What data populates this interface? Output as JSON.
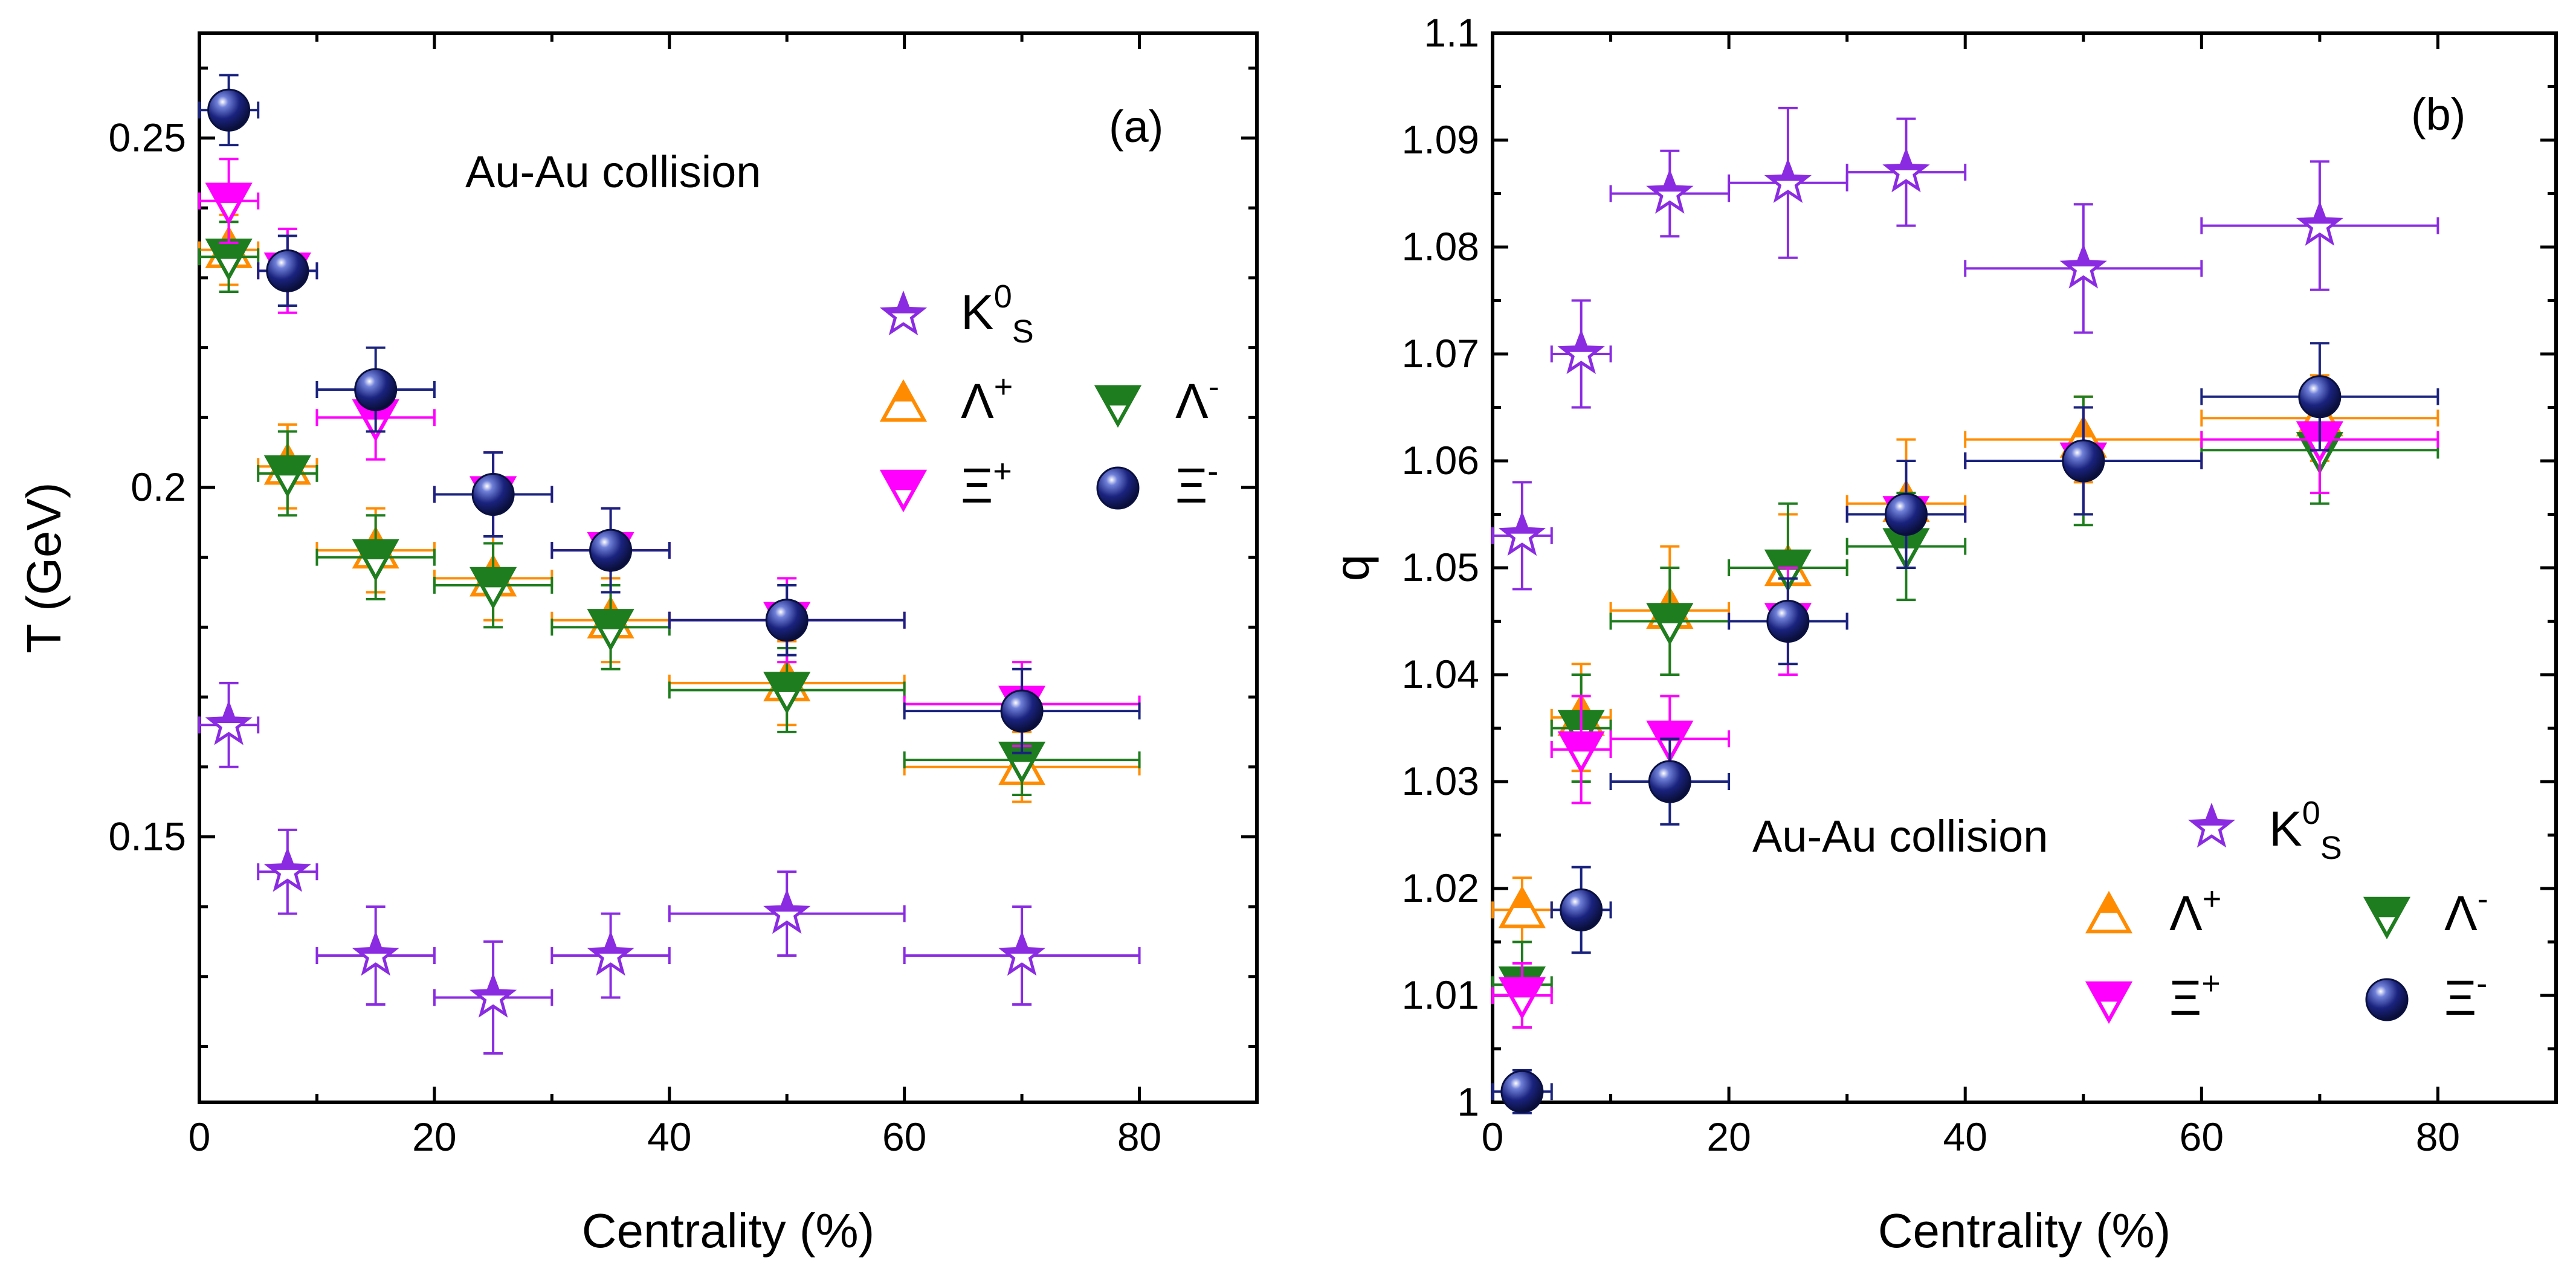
{
  "colors": {
    "K0S": "#8a2be2",
    "LambdaPlus": "#ff8c00",
    "LambdaMinus": "#1e7d1e",
    "XiPlus": "#ff00ff",
    "XiMinus": "#1a237e"
  },
  "chart_data": [
    {
      "type": "scatter",
      "panel_label": "(a)",
      "annotation": "Au-Au collision",
      "xlabel": "Centrality (%)",
      "ylabel": "T (GeV)",
      "xlim": [
        0,
        90
      ],
      "ylim": [
        0.112,
        0.265
      ],
      "x_ticks": [
        "0",
        "20",
        "40",
        "60",
        "80"
      ],
      "y_ticks": [
        "0.15",
        "0.2",
        "0.25"
      ],
      "series": [
        {
          "key": "K0S",
          "name": "K0S",
          "marker": "star",
          "x": [
            2.5,
            7.5,
            15,
            25,
            35,
            50,
            70
          ],
          "xerr": [
            2.5,
            2.5,
            5,
            5,
            5,
            10,
            10
          ],
          "y": [
            0.166,
            0.145,
            0.133,
            0.127,
            0.133,
            0.139,
            0.133
          ],
          "yerr": [
            0.006,
            0.006,
            0.007,
            0.008,
            0.006,
            0.006,
            0.007
          ]
        },
        {
          "key": "LambdaPlus",
          "name": "Λ+",
          "marker": "triangle-up",
          "x": [
            2.5,
            7.5,
            15,
            25,
            35,
            50,
            70
          ],
          "xerr": [
            2.5,
            2.5,
            5,
            5,
            5,
            10,
            10
          ],
          "y": [
            0.234,
            0.203,
            0.191,
            0.187,
            0.181,
            0.172,
            0.16
          ],
          "yerr": [
            0.005,
            0.006,
            0.006,
            0.006,
            0.006,
            0.006,
            0.005
          ]
        },
        {
          "key": "LambdaMinus",
          "name": "Λ-",
          "marker": "triangle-down",
          "x": [
            2.5,
            7.5,
            15,
            25,
            35,
            50,
            70
          ],
          "xerr": [
            2.5,
            2.5,
            5,
            5,
            5,
            10,
            10
          ],
          "y": [
            0.233,
            0.202,
            0.19,
            0.186,
            0.18,
            0.171,
            0.161
          ],
          "yerr": [
            0.005,
            0.006,
            0.006,
            0.006,
            0.006,
            0.006,
            0.005
          ]
        },
        {
          "key": "XiPlus",
          "name": "Ξ+",
          "marker": "triangle-down",
          "x": [
            2.5,
            7.5,
            15,
            25,
            35,
            50,
            70
          ],
          "xerr": [
            2.5,
            2.5,
            5,
            5,
            5,
            10,
            10
          ],
          "y": [
            0.241,
            0.231,
            0.21,
            0.199,
            0.191,
            0.181,
            0.169
          ],
          "yerr": [
            0.006,
            0.006,
            0.006,
            0.006,
            0.006,
            0.006,
            0.006
          ]
        },
        {
          "key": "XiMinus",
          "name": "Ξ-",
          "marker": "circle",
          "x": [
            2.5,
            7.5,
            15,
            25,
            35,
            50,
            70
          ],
          "xerr": [
            2.5,
            2.5,
            5,
            5,
            5,
            10,
            10
          ],
          "y": [
            0.254,
            0.231,
            0.214,
            0.199,
            0.191,
            0.181,
            0.168
          ],
          "yerr": [
            0.005,
            0.005,
            0.006,
            0.006,
            0.006,
            0.005,
            0.006
          ]
        }
      ],
      "legend": {
        "placement": "right"
      }
    },
    {
      "type": "scatter",
      "panel_label": "(b)",
      "annotation": "Au-Au collision",
      "xlabel": "Centrality (%)",
      "ylabel": "q",
      "xlim": [
        0,
        90
      ],
      "ylim": [
        1.0,
        1.1
      ],
      "x_ticks": [
        "0",
        "20",
        "40",
        "60",
        "80"
      ],
      "y_ticks": [
        "1",
        "1.01",
        "1.02",
        "1.03",
        "1.04",
        "1.05",
        "1.06",
        "1.07",
        "1.08",
        "1.09",
        "1.1"
      ],
      "series": [
        {
          "key": "K0S",
          "name": "K0S",
          "marker": "star",
          "x": [
            2.5,
            7.5,
            15,
            25,
            35,
            50,
            70
          ],
          "xerr": [
            2.5,
            2.5,
            5,
            5,
            5,
            10,
            10
          ],
          "y": [
            1.053,
            1.07,
            1.085,
            1.086,
            1.087,
            1.078,
            1.082
          ],
          "yerr": [
            0.005,
            0.005,
            0.004,
            0.007,
            0.005,
            0.006,
            0.006
          ]
        },
        {
          "key": "LambdaPlus",
          "name": "Λ+",
          "marker": "triangle-up",
          "x": [
            2.5,
            7.5,
            15,
            25,
            35,
            50,
            70
          ],
          "xerr": [
            2.5,
            2.5,
            5,
            5,
            5,
            10,
            10
          ],
          "y": [
            1.018,
            1.036,
            1.046,
            1.05,
            1.056,
            1.062,
            1.064
          ],
          "yerr": [
            0.003,
            0.005,
            0.006,
            0.005,
            0.006,
            0.004,
            0.004
          ]
        },
        {
          "key": "LambdaMinus",
          "name": "Λ-",
          "marker": "triangle-down",
          "x": [
            2.5,
            7.5,
            15,
            25,
            35,
            50,
            70
          ],
          "xerr": [
            2.5,
            2.5,
            5,
            5,
            5,
            10,
            10
          ],
          "y": [
            1.011,
            1.035,
            1.045,
            1.05,
            1.052,
            1.06,
            1.061
          ],
          "yerr": [
            0.004,
            0.005,
            0.005,
            0.006,
            0.005,
            0.006,
            0.005
          ]
        },
        {
          "key": "XiPlus",
          "name": "Ξ+",
          "marker": "triangle-down",
          "x": [
            2.5,
            7.5,
            15,
            25,
            35,
            50,
            70
          ],
          "xerr": [
            2.5,
            2.5,
            5,
            5,
            5,
            10,
            10
          ],
          "y": [
            1.01,
            1.033,
            1.034,
            1.045,
            1.055,
            1.06,
            1.062
          ],
          "yerr": [
            0.003,
            0.005,
            0.004,
            0.005,
            0.005,
            0.005,
            0.005
          ]
        },
        {
          "key": "XiMinus",
          "name": "Ξ-",
          "marker": "circle",
          "x": [
            2.5,
            7.5,
            15,
            25,
            35,
            50,
            70
          ],
          "xerr": [
            2.5,
            2.5,
            5,
            5,
            5,
            10,
            10
          ],
          "y": [
            1.001,
            1.018,
            1.03,
            1.045,
            1.055,
            1.06,
            1.066
          ],
          "yerr": [
            0.002,
            0.004,
            0.004,
            0.004,
            0.005,
            0.005,
            0.005
          ]
        }
      ],
      "legend": {
        "placement": "bottom-right"
      }
    }
  ]
}
